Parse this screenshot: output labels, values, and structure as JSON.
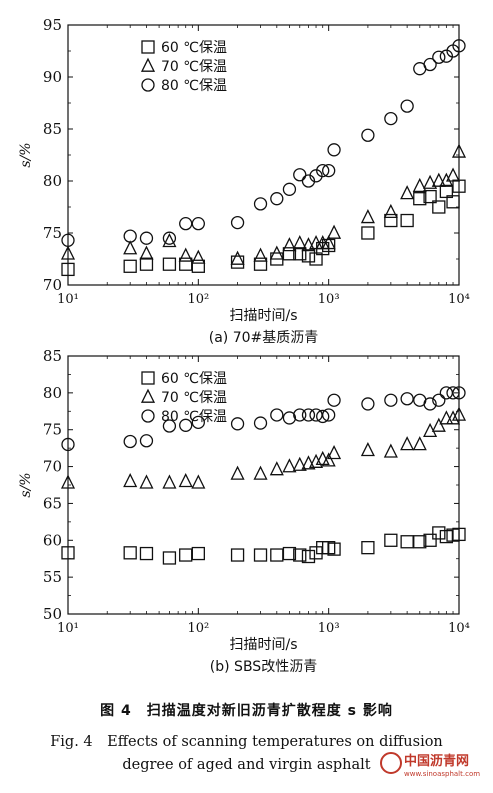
{
  "colors": {
    "ink": "#111111",
    "watermark": "#c0392b"
  },
  "chart_data": [
    {
      "type": "scatter",
      "title": "(a) 70#基质沥青",
      "xlabel": "扫描时间/s",
      "ylabel": "s/%",
      "xscale": "log",
      "xlim": [
        10,
        10000
      ],
      "ylim": [
        70,
        95
      ],
      "xticks": [
        "10¹",
        "10²",
        "10³",
        "10⁴"
      ],
      "yticks": [
        "70",
        "75",
        "80",
        "85",
        "90",
        "95"
      ],
      "legend_position": "top-left",
      "series": [
        {
          "name": "60 ℃保温",
          "marker": "square",
          "points": [
            [
              10,
              71.5
            ],
            [
              30,
              71.8
            ],
            [
              40,
              72
            ],
            [
              60,
              72
            ],
            [
              80,
              72
            ],
            [
              100,
              71.8
            ],
            [
              200,
              72.2
            ],
            [
              300,
              72
            ],
            [
              400,
              72.5
            ],
            [
              500,
              73
            ],
            [
              600,
              73
            ],
            [
              700,
              72.8
            ],
            [
              800,
              72.5
            ],
            [
              900,
              73.5
            ],
            [
              1000,
              73.8
            ],
            [
              2000,
              75
            ],
            [
              3000,
              76.2
            ],
            [
              4000,
              76.2
            ],
            [
              5000,
              78.3
            ],
            [
              6000,
              78.5
            ],
            [
              7000,
              77.5
            ],
            [
              8000,
              79
            ],
            [
              9000,
              78
            ],
            [
              10000,
              79.5
            ]
          ]
        },
        {
          "name": "70 ℃保温",
          "marker": "triangle",
          "points": [
            [
              10,
              73
            ],
            [
              30,
              73.5
            ],
            [
              40,
              73
            ],
            [
              60,
              74.2
            ],
            [
              80,
              72.8
            ],
            [
              100,
              72.6
            ],
            [
              200,
              72.5
            ],
            [
              300,
              72.8
            ],
            [
              400,
              73
            ],
            [
              500,
              73.8
            ],
            [
              600,
              74
            ],
            [
              700,
              73.8
            ],
            [
              800,
              74
            ],
            [
              900,
              74
            ],
            [
              1000,
              74
            ],
            [
              1100,
              75
            ],
            [
              2000,
              76.5
            ],
            [
              3000,
              77
            ],
            [
              4000,
              78.8
            ],
            [
              5000,
              79.5
            ],
            [
              6000,
              79.8
            ],
            [
              7000,
              80
            ],
            [
              8000,
              80
            ],
            [
              9000,
              80.5
            ],
            [
              10000,
              82.8
            ]
          ]
        },
        {
          "name": "80 ℃保温",
          "marker": "circle",
          "points": [
            [
              10,
              74.3
            ],
            [
              30,
              74.7
            ],
            [
              40,
              74.5
            ],
            [
              60,
              74.5
            ],
            [
              80,
              75.9
            ],
            [
              100,
              75.9
            ],
            [
              200,
              76
            ],
            [
              300,
              77.8
            ],
            [
              400,
              78.3
            ],
            [
              500,
              79.2
            ],
            [
              600,
              80.6
            ],
            [
              700,
              80
            ],
            [
              800,
              80.5
            ],
            [
              900,
              81
            ],
            [
              1000,
              81
            ],
            [
              1100,
              83
            ],
            [
              2000,
              84.4
            ],
            [
              3000,
              86
            ],
            [
              4000,
              87.2
            ],
            [
              5000,
              90.8
            ],
            [
              6000,
              91.2
            ],
            [
              7000,
              91.9
            ],
            [
              8000,
              92
            ],
            [
              9000,
              92.5
            ],
            [
              10000,
              93
            ]
          ]
        }
      ]
    },
    {
      "type": "scatter",
      "title": "(b) SBS改性沥青",
      "xlabel": "扫描时间/s",
      "ylabel": "s/%",
      "xscale": "log",
      "xlim": [
        10,
        10000
      ],
      "ylim": [
        50,
        85
      ],
      "xticks": [
        "10¹",
        "10²",
        "10³",
        "10⁴"
      ],
      "yticks": [
        "50",
        "55",
        "60",
        "65",
        "70",
        "75",
        "80",
        "85"
      ],
      "legend_position": "top-left",
      "series": [
        {
          "name": "60 ℃保温",
          "marker": "square",
          "points": [
            [
              10,
              58.3
            ],
            [
              30,
              58.3
            ],
            [
              40,
              58.2
            ],
            [
              60,
              57.6
            ],
            [
              80,
              58
            ],
            [
              100,
              58.2
            ],
            [
              200,
              58
            ],
            [
              300,
              58
            ],
            [
              400,
              58
            ],
            [
              500,
              58.2
            ],
            [
              600,
              58
            ],
            [
              700,
              57.8
            ],
            [
              800,
              58.3
            ],
            [
              900,
              59
            ],
            [
              1000,
              59
            ],
            [
              1100,
              58.8
            ],
            [
              2000,
              59
            ],
            [
              3000,
              60
            ],
            [
              4000,
              59.8
            ],
            [
              5000,
              59.8
            ],
            [
              6000,
              60
            ],
            [
              7000,
              61
            ],
            [
              8000,
              60.5
            ],
            [
              9000,
              60.7
            ],
            [
              10000,
              60.8
            ]
          ]
        },
        {
          "name": "70 ℃保温",
          "marker": "triangle",
          "points": [
            [
              10,
              67.8
            ],
            [
              30,
              68
            ],
            [
              40,
              67.8
            ],
            [
              60,
              67.8
            ],
            [
              80,
              68
            ],
            [
              100,
              67.8
            ],
            [
              200,
              69
            ],
            [
              300,
              69
            ],
            [
              400,
              69.6
            ],
            [
              500,
              70
            ],
            [
              600,
              70.2
            ],
            [
              700,
              70.4
            ],
            [
              800,
              70.6
            ],
            [
              900,
              71
            ],
            [
              1000,
              70.8
            ],
            [
              1100,
              71.8
            ],
            [
              2000,
              72.2
            ],
            [
              3000,
              72
            ],
            [
              4000,
              73
            ],
            [
              5000,
              73
            ],
            [
              6000,
              74.8
            ],
            [
              7000,
              75.5
            ],
            [
              8000,
              76.5
            ],
            [
              9000,
              76.5
            ],
            [
              10000,
              77
            ]
          ]
        },
        {
          "name": "80 ℃保温",
          "marker": "circle",
          "points": [
            [
              10,
              73
            ],
            [
              30,
              73.4
            ],
            [
              40,
              73.5
            ],
            [
              60,
              75.5
            ],
            [
              80,
              75.6
            ],
            [
              100,
              76
            ],
            [
              200,
              75.8
            ],
            [
              300,
              75.9
            ],
            [
              400,
              77
            ],
            [
              500,
              76.6
            ],
            [
              600,
              77
            ],
            [
              700,
              77
            ],
            [
              800,
              77
            ],
            [
              900,
              76.8
            ],
            [
              1000,
              77
            ],
            [
              1100,
              79
            ],
            [
              2000,
              78.5
            ],
            [
              3000,
              79
            ],
            [
              4000,
              79.2
            ],
            [
              5000,
              79
            ],
            [
              6000,
              78.5
            ],
            [
              7000,
              79
            ],
            [
              8000,
              80
            ],
            [
              9000,
              80
            ],
            [
              10000,
              80
            ]
          ]
        }
      ]
    }
  ],
  "captions": {
    "figure_cn": "图 4　扫描温度对新旧沥青扩散程度 s 影响",
    "figure_en_1": "Fig. 4　Effects of scanning temperatures on diffusion",
    "figure_en_2": "degree of aged and virgin asphalt"
  },
  "watermark": {
    "title": "中国沥青网",
    "url": "www.sinoasphalt.com"
  }
}
